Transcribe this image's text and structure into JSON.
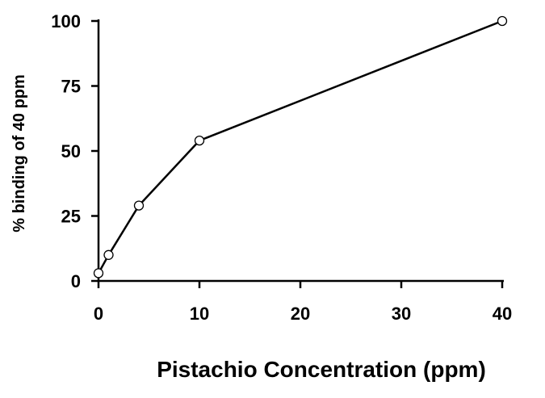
{
  "chart_data": {
    "type": "line",
    "title": "",
    "xlabel": "Pistachio Concentration (ppm)",
    "ylabel": "% binding of 40 ppm",
    "x_ticks": [
      "0",
      "10",
      "20",
      "30",
      "40"
    ],
    "y_ticks": [
      "0",
      "25",
      "50",
      "75",
      "100"
    ],
    "xlim": [
      0,
      40
    ],
    "ylim": [
      0,
      100
    ],
    "grid": false,
    "legend": "none",
    "series": [
      {
        "x": [
          0,
          1,
          4,
          10,
          40
        ],
        "y": [
          3,
          10,
          29,
          54,
          100
        ],
        "color": "#000000",
        "marker": "open-circle"
      }
    ]
  }
}
